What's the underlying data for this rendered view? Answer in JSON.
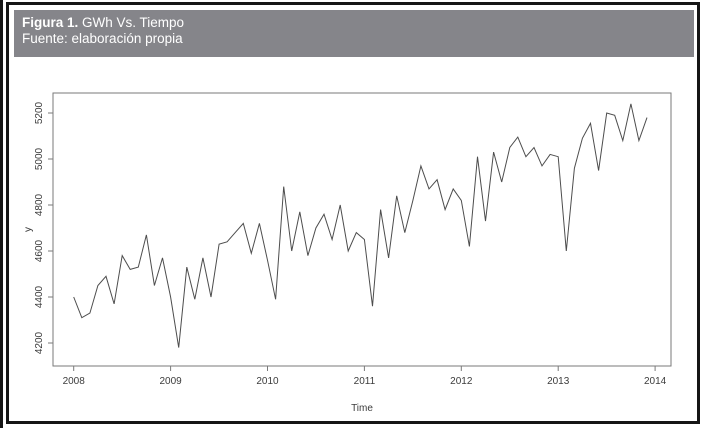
{
  "header": {
    "figure_label": "Figura 1.",
    "figure_title": " GWh Vs. Tiempo",
    "source": "Fuente: elaboración propia"
  },
  "colors": {
    "frame": "#161616",
    "header_bg": "#85858a",
    "header_text": "#ffffff",
    "box_line": "#7a7a7a",
    "series_line": "#4d4d4d",
    "tick_text": "#3c3c3c"
  },
  "chart_data": {
    "type": "line",
    "title": "",
    "xlabel": "Time",
    "ylabel": "y",
    "legend": "none",
    "grid": false,
    "x_start_year": 2008,
    "x_step_months": 1,
    "x_ticks": [
      2008,
      2009,
      2010,
      2011,
      2012,
      2013,
      2014
    ],
    "y_ticks": [
      4200,
      4400,
      4600,
      4800,
      5000,
      5200
    ],
    "xlim": [
      2007.85,
      2014.15
    ],
    "ylim": [
      4150,
      5290
    ],
    "series": [
      {
        "name": "GWh",
        "values": [
          4400,
          4310,
          4330,
          4450,
          4490,
          4370,
          4580,
          4520,
          4530,
          4670,
          4450,
          4570,
          4400,
          4180,
          4530,
          4390,
          4570,
          4400,
          4630,
          4640,
          4680,
          4720,
          4590,
          4720,
          4560,
          4390,
          4880,
          4600,
          4770,
          4580,
          4700,
          4760,
          4650,
          4800,
          4600,
          4680,
          4650,
          4360,
          4780,
          4570,
          4840,
          4680,
          4820,
          4970,
          4870,
          4910,
          4780,
          4870,
          4820,
          4620,
          5010,
          4730,
          5030,
          4900,
          5050,
          5095,
          5010,
          5050,
          4970,
          5020,
          5010,
          4600,
          4960,
          5090,
          5155,
          4950,
          5200,
          5190,
          5080,
          5240,
          5080,
          5180
        ]
      }
    ]
  }
}
